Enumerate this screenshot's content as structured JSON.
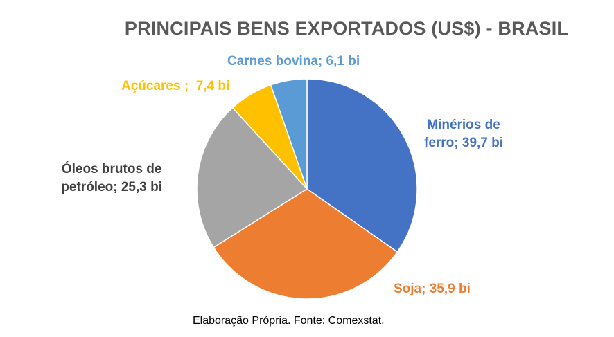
{
  "chart_data": {
    "type": "pie",
    "title": "PRINCIPAIS BENS EXPORTADOS (US$) - BRASIL",
    "slices": [
      {
        "name": "Minérios de ferro",
        "value": 39.7,
        "label_lines": [
          "Minérios de",
          "ferro; 39,7 bi"
        ],
        "color": "#4472C4"
      },
      {
        "name": "Soja",
        "value": 35.9,
        "label_lines": [
          "Soja; 35,9 bi"
        ],
        "color": "#ED7D31"
      },
      {
        "name": "Óleos brutos de petróleo",
        "value": 25.3,
        "label_lines": [
          "Óleos brutos de",
          "petróleo; 25,3 bi"
        ],
        "color": "#A5A5A5"
      },
      {
        "name": "Açúcares",
        "value": 7.4,
        "label_lines": [
          "Açúcares ;  7,4 bi"
        ],
        "color": "#FFC000"
      },
      {
        "name": "Carnes bovina",
        "value": 6.1,
        "label_lines": [
          "Carnes bovina; 6,1 bi"
        ],
        "color": "#5B9BD5"
      }
    ],
    "legend": "none",
    "start_angle": "12 o'clock",
    "direction": "clockwise"
  },
  "footnote": "Elaboração Própria. Fonte: Comexstat.",
  "colors": {
    "title": "#595959",
    "background": "#ffffff"
  }
}
